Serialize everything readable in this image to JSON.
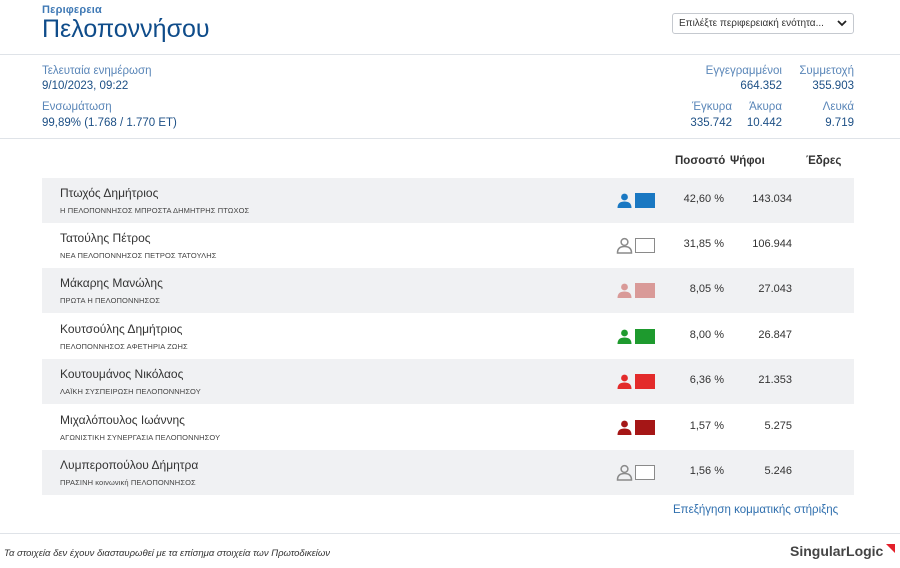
{
  "header": {
    "region_label": "Περιφερεια",
    "region_title": "Πελοποννήσου",
    "unit_select_value": "Επιλέξτε περιφερειακή ενότητα..."
  },
  "stats": {
    "last_update_label": "Τελευταία ενημέρωση",
    "last_update_value": "9/10/2023, 09:22",
    "integration_label": "Ενσωμάτωση",
    "integration_value": "99,89% (1.768 / 1.770 ΕΤ)",
    "registered_label": "Εγγεγραμμένοι",
    "registered_value": "664.352",
    "turnout_label": "Συμμετοχή",
    "turnout_value": "355.903",
    "valid_label": "Έγκυρα",
    "valid_value": "335.742",
    "invalid_label": "Άκυρα",
    "invalid_value": "10.442",
    "blank_label": "Λευκά",
    "blank_value": "9.719"
  },
  "table": {
    "col_percent": "Ποσοστό",
    "col_votes": "Ψήφοι",
    "col_seats": "Έδρες",
    "rows": [
      {
        "candidate": "Πτωχός Δημήτριος",
        "party": "Η ΠΕΛΟΠΟΝΝΗΣΟΣ ΜΠΡΟΣΤΑ ΔΗΜΗΤΡΗΣ ΠΤΩΧΟΣ",
        "percent": "42,60 %",
        "votes": "143.034",
        "color": "#1a78c2",
        "filled": true
      },
      {
        "candidate": "Τατούλης Πέτρος",
        "party": "ΝΕΑ ΠΕΛΟΠΟΝΝΗΣΟΣ ΠΕΤΡΟΣ ΤΑΤΟΥΛΗΣ",
        "percent": "31,85 %",
        "votes": "106.944",
        "color": "#8a8a8a",
        "filled": false
      },
      {
        "candidate": "Μάκαρης Μανώλης",
        "party": "ΠΡΩΤΑ Η ΠΕΛΟΠΟΝΝΗΣΟΣ",
        "percent": "8,05 %",
        "votes": "27.043",
        "color": "#d99a98",
        "filled": true
      },
      {
        "candidate": "Κουτσούλης Δημήτριος",
        "party": "ΠΕΛΟΠΟΝΝΗΣΟΣ ΑΦΕΤΗΡΙΑ ΖΩΗΣ",
        "percent": "8,00 %",
        "votes": "26.847",
        "color": "#1e9a2e",
        "filled": true
      },
      {
        "candidate": "Κουτουμάνος Νικόλαος",
        "party": "ΛΑΪΚΗ ΣΥΣΠΕΙΡΩΣΗ ΠΕΛΟΠΟΝΝΗΣΟΥ",
        "percent": "6,36 %",
        "votes": "21.353",
        "color": "#e32b2b",
        "filled": true
      },
      {
        "candidate": "Μιχαλόπουλος Ιωάννης",
        "party": "ΑΓΩΝΙΣΤΙΚΗ ΣΥΝΕΡΓΑΣΙΑ ΠΕΛΟΠΟΝΝΗΣΟΥ",
        "percent": "1,57 %",
        "votes": "5.275",
        "color": "#a51616",
        "filled": true
      },
      {
        "candidate": "Λυμπεροπούλου Δήμητρα",
        "party": "ΠΡΑΣΙΝΗ κοινωνική ΠΕΛΟΠΟΝΝΗΣΟΣ",
        "percent": "1,56 %",
        "votes": "5.246",
        "color": "#8a8a8a",
        "filled": false
      }
    ]
  },
  "links": {
    "party_support_explanation": "Επεξήγηση κομματικής στήριξης"
  },
  "footer": {
    "disclaimer": "Τα στοιχεία δεν έχουν διασταυρωθεί με τα επίσημα στοιχεία των Πρωτοδικείων",
    "brand_part1": "Singular",
    "brand_part2": "Logic",
    "brand_accent": "#e3202a"
  }
}
